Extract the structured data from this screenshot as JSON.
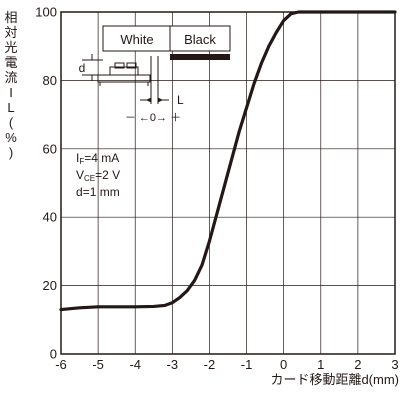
{
  "chart_data": {
    "type": "line",
    "xlabel": "カード移動距離d(mm)",
    "ylabel": "相対光電流IL(%)",
    "ylabel_chars": [
      "相",
      "対",
      "光",
      "電",
      "流",
      "I",
      "L",
      "(",
      "%",
      ")"
    ],
    "xlim": [
      -6,
      3
    ],
    "ylim": [
      0,
      100
    ],
    "x_ticks": [
      "-6",
      "-5",
      "-4",
      "-3",
      "-2",
      "-1",
      "0",
      "1",
      "2",
      "3"
    ],
    "y_ticks": [
      "0",
      "20",
      "40",
      "60",
      "80",
      "100"
    ],
    "grid": true,
    "series": [
      {
        "x": [
          -6,
          -5.5,
          -5,
          -4.5,
          -4,
          -3.5,
          -3.2,
          -3.0,
          -2.8,
          -2.6,
          -2.4,
          -2.2,
          -2.0,
          -1.8,
          -1.6,
          -1.4,
          -1.2,
          -1.0,
          -0.8,
          -0.6,
          -0.4,
          -0.2,
          0.0,
          0.2,
          0.4,
          0.6,
          0.8,
          1.0,
          2.0,
          3.0
        ],
        "y": [
          13,
          13.5,
          13.8,
          13.8,
          13.8,
          13.9,
          14.2,
          15.0,
          16.5,
          18.5,
          21.5,
          26.0,
          33.0,
          41.0,
          49.0,
          57.0,
          65.0,
          72.0,
          79.0,
          85.0,
          90.0,
          94.0,
          97.5,
          99.5,
          100,
          100,
          100,
          100,
          100,
          100
        ]
      }
    ],
    "legend_box": {
      "left": "White",
      "right": "Black"
    },
    "diagram_labels": {
      "d": "d",
      "L": "L",
      "scale": "－ ←0→ ＋"
    },
    "annotations": [
      {
        "main": "I",
        "sub": "F",
        "rest": "=4 mA"
      },
      {
        "main": "V",
        "sub": "CE",
        "rest": "=2 V"
      },
      {
        "main": "d",
        "sub": "",
        "rest": "=1 mm"
      }
    ],
    "colors": {
      "line": "#231815",
      "grid": "#231815"
    }
  }
}
